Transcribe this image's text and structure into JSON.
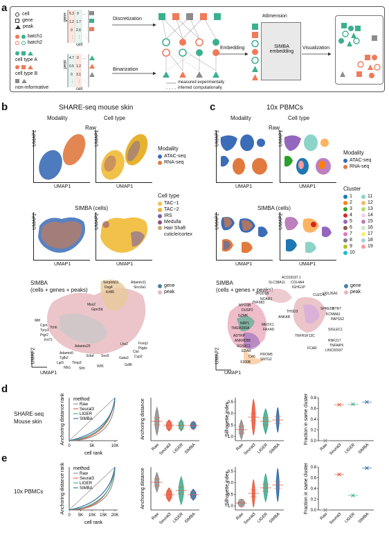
{
  "panels": {
    "a": "a",
    "b": "b",
    "c": "c",
    "d": "d",
    "e": "e"
  },
  "panel_a": {
    "legend_shapes": [
      "cell",
      "gene",
      "peak"
    ],
    "legend_batches": [
      "batch1",
      "batch2"
    ],
    "legend_celltypes": [
      "cell type A",
      "cell type B",
      "non-informative"
    ],
    "matrix_top_axis_label": "gene",
    "matrix_top_bottom_label": "cell",
    "matrix_top_values": [
      [
        "5.3",
        "0",
        "..."
      ],
      [
        "1.2",
        "1.7",
        ""
      ],
      [
        "0",
        "2.6",
        ""
      ],
      [
        "⋮",
        "⋮",
        "⋱"
      ]
    ],
    "matrix_bottom_axis_label": "peak",
    "matrix_bottom_bottom_label": "cell",
    "matrix_bottom_values": [
      [
        "4.7",
        "0",
        "..."
      ],
      [
        "0.5",
        "1.2",
        ""
      ],
      [
        "0",
        "3.1",
        ""
      ],
      [
        "⋮",
        "⋮",
        "⋱"
      ]
    ],
    "discretization": "Discretization",
    "binarization": "Binarization",
    "measured": "measured experimentally",
    "inferred": "inferred computationally",
    "embedding": "Embedding",
    "dimension": "#dimension",
    "simba_embedding": "SIMBA\nembedding",
    "visualization": "Visualization",
    "colors": {
      "teal": "#3bb08f",
      "orange": "#ef7b5a",
      "gray": "#8c8c8c"
    }
  },
  "panel_b": {
    "title": "SHARE-seq mouse skin",
    "modality": "Modality",
    "celltype": "Cell type",
    "raw": "Raw",
    "simba_cells": "SIMBA (cells)",
    "simba_all": "SIMBA\n(cells + genes + peaks)",
    "umap1": "UMAP1",
    "umap2": "UMAP2",
    "legend_modality_title": "Modality",
    "legend_modality": [
      {
        "label": "ATAC-seq",
        "color": "#3b6cb7"
      },
      {
        "label": "RNA-seq",
        "color": "#e07a3f"
      }
    ],
    "legend_celltype_title": "Cell type",
    "legend_celltype": [
      {
        "label": "TAC−1",
        "color": "#f2c14a"
      },
      {
        "label": "TAC−2",
        "color": "#e7b22e"
      },
      {
        "label": "IRS",
        "color": "#7a5fa8"
      },
      {
        "label": "Medulla",
        "color": "#8e4e7a"
      },
      {
        "label": "Hair Shaft\ncuticle/cortex",
        "color": "#c9aa7a"
      }
    ],
    "legend_feature": [
      {
        "label": "gene",
        "color": "#4a7fa6"
      },
      {
        "label": "peak",
        "color": "#e6b7bd"
      }
    ],
    "genes": [
      "Serpinb11",
      "Dsg4",
      "Krt85",
      "Adamts11",
      "Slco3a1",
      "Msx2",
      "Gprc5d",
      "Cpm",
      "Tyrp1",
      "Mitf",
      "Ptgr2",
      "Tchh",
      "Krt71",
      "Adamts20",
      "Adamts5",
      "Tgfb2",
      "Lgr5",
      "Nfs1",
      "Timp3",
      "Shh",
      "Edaf",
      "Sox9",
      "Wif1",
      "Gata3",
      "Lhx2",
      "Foxq1",
      "Cyp2",
      "Gdf6",
      "Ctsl",
      "Ptgds"
    ]
  },
  "panel_c": {
    "title": "10x PBMCs",
    "modality": "Modality",
    "celltype": "Cell type",
    "raw": "Raw",
    "simba_cells": "SIMBA (cells)",
    "simba_all": "SIMBA\n(cells + genes + peaks)",
    "umap1": "UMAP1",
    "umap2": "UMAP2",
    "legend_modality_title": "Modality",
    "legend_modality": [
      {
        "label": "ATAC-seq",
        "color": "#3b6cb7"
      },
      {
        "label": "RNA-seq",
        "color": "#e07a3f"
      }
    ],
    "legend_cluster_title": "Cluster",
    "legend_cluster": [
      {
        "label": "1",
        "color": "#1f77b4"
      },
      {
        "label": "11",
        "color": "#8dd3c7"
      },
      {
        "label": "2",
        "color": "#ff7f0e"
      },
      {
        "label": "12",
        "color": "#fdb462"
      },
      {
        "label": "3",
        "color": "#2ca02c"
      },
      {
        "label": "13",
        "color": "#b3de69"
      },
      {
        "label": "4",
        "color": "#d62728"
      },
      {
        "label": "14",
        "color": "#fccde5"
      },
      {
        "label": "5",
        "color": "#9467bd"
      },
      {
        "label": "15",
        "color": "#bc80bd"
      },
      {
        "label": "6",
        "color": "#8c564b"
      },
      {
        "label": "16",
        "color": "#ccebc5"
      },
      {
        "label": "7",
        "color": "#e377c2"
      },
      {
        "label": "17",
        "color": "#ffed6f"
      },
      {
        "label": "8",
        "color": "#7f7f7f"
      },
      {
        "label": "18",
        "color": "#a6cee3"
      },
      {
        "label": "9",
        "color": "#bcbd22"
      },
      {
        "label": "19",
        "color": "#fb9a99"
      },
      {
        "label": "10",
        "color": "#17becf"
      }
    ],
    "legend_feature": [
      {
        "label": "gene",
        "color": "#4a7fa6"
      },
      {
        "label": "peak",
        "color": "#e6b7bd"
      }
    ],
    "genes": [
      "AC019187.1",
      "SLC38A11",
      "COL4A4",
      "IGHG1P",
      "SH2D1B",
      "NCAM1",
      "CLEC4C",
      "COL26A1",
      "MYO3B",
      "ZNF683",
      "DUSP2",
      "GZMK",
      "NRP1",
      "TMEM200A",
      "ADTRP",
      "ANKRD55",
      "SOX3C1",
      "EDAR",
      "CA6",
      "S100B",
      "PROM5",
      "SNTG2",
      "TNFRSF13C",
      "FCAR",
      "LINC00937",
      "SIGLEC1",
      "TNFAIP6",
      "RNF217",
      "SPRED1",
      "KCNMA1",
      "HTR7",
      "PAPSS2",
      "MEOX1",
      "FAXAD",
      "ANKAR",
      "THSD3"
    ]
  },
  "chart_data": [
    {
      "id": "d-anchoring-rank",
      "type": "line",
      "row_label": "SHARE-seq\nMouse skin",
      "legend_title": "method",
      "xlabel": "cell rank",
      "ylabel": "Anchoring distance rank",
      "x_ticks": [
        "0",
        "5K",
        "10K"
      ],
      "series": [
        {
          "name": "Raw",
          "color": "#8c8c8c"
        },
        {
          "name": "Seurat3",
          "color": "#e8563a"
        },
        {
          "name": "LIGER",
          "color": "#3aaa8b"
        },
        {
          "name": "SIMBA",
          "color": "#2d6aa3"
        }
      ]
    },
    {
      "id": "d-anchoring-distance",
      "type": "violin",
      "ylabel": "Anchoring distance",
      "categories": [
        "Raw",
        "Seurat3",
        "LIGER",
        "SIMBA"
      ],
      "colors": [
        "#8c8c8c",
        "#e8563a",
        "#3aaa8b",
        "#2d6aa3"
      ]
    },
    {
      "id": "d-silhouette",
      "type": "violin",
      "ylabel": "Silhouette index",
      "categories": [
        "Raw",
        "Seurat3",
        "LIGER",
        "SIMBA"
      ],
      "y_ticks": [
        "0.5",
        "0.0",
        "−0.5",
        "−1.0"
      ],
      "colors": [
        "#8c8c8c",
        "#e8563a",
        "#3aaa8b",
        "#2d6aa3"
      ]
    },
    {
      "id": "d-fraction",
      "type": "scatter",
      "ylabel": "Fraction in same cluster",
      "categories": [
        "Raw",
        "Seurat3",
        "LIGER",
        "SIMBA"
      ],
      "y_ticks": [
        "0.8",
        "0.6",
        "0.4",
        "0.2",
        "0.0"
      ],
      "ylim": [
        0,
        0.8
      ],
      "values": [
        0.0,
        0.67,
        0.68,
        0.72
      ],
      "colors": [
        "#8c8c8c",
        "#e8563a",
        "#3aaa8b",
        "#2d6aa3"
      ]
    },
    {
      "id": "e-anchoring-rank",
      "type": "line",
      "row_label": "10x PBMCs",
      "legend_title": "method",
      "xlabel": "cell rank",
      "ylabel": "Anchoring distance rank",
      "x_ticks": [
        "0",
        "5K",
        "10K",
        "15K",
        "20K"
      ],
      "series": [
        {
          "name": "Raw",
          "color": "#8c8c8c"
        },
        {
          "name": "Seurat3",
          "color": "#e8563a"
        },
        {
          "name": "LIGER",
          "color": "#3aaa8b"
        },
        {
          "name": "SIMBA",
          "color": "#2d6aa3"
        }
      ]
    },
    {
      "id": "e-anchoring-distance",
      "type": "violin",
      "ylabel": "Anchoring distance",
      "categories": [
        "Raw",
        "Seurat3",
        "LIGER",
        "SIMBA"
      ],
      "colors": [
        "#8c8c8c",
        "#e8563a",
        "#3aaa8b",
        "#2d6aa3"
      ]
    },
    {
      "id": "e-silhouette",
      "type": "violin",
      "ylabel": "Silhouette index",
      "categories": [
        "Raw",
        "Seurat3",
        "LIGER",
        "SIMBA"
      ],
      "y_ticks": [
        "0.5",
        "0.0",
        "−0.5",
        "−1.0"
      ],
      "colors": [
        "#8c8c8c",
        "#e8563a",
        "#3aaa8b",
        "#2d6aa3"
      ]
    },
    {
      "id": "e-fraction",
      "type": "scatter",
      "ylabel": "Fraction in same cluster",
      "categories": [
        "Raw",
        "Seurat3",
        "LIGER",
        "SIMBA"
      ],
      "y_ticks": [
        "0.8",
        "0.6",
        "0.4",
        "0.2",
        "0.0"
      ],
      "ylim": [
        0,
        0.8
      ],
      "values": [
        0.0,
        0.66,
        0.27,
        0.78
      ],
      "colors": [
        "#8c8c8c",
        "#e8563a",
        "#3aaa8b",
        "#2d6aa3"
      ]
    }
  ]
}
